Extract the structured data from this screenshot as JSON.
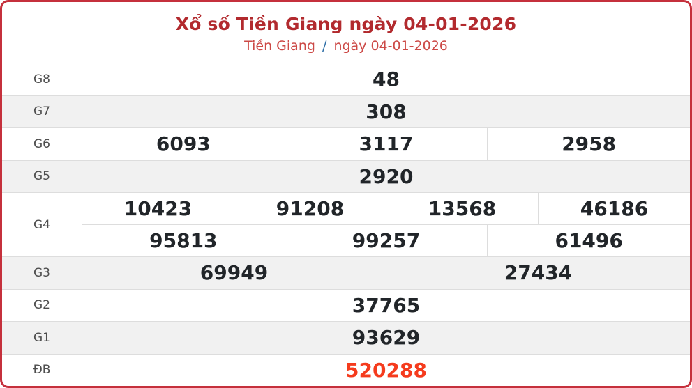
{
  "header": {
    "title": "Xổ số Tiền Giang ngày 04-01-2026",
    "breadcrumb": {
      "province": "Tiền Giang",
      "separator": "/",
      "date": "ngày 04-01-2026"
    }
  },
  "table": {
    "rows": [
      {
        "label": "G8",
        "lines": [
          [
            "48"
          ]
        ]
      },
      {
        "label": "G7",
        "lines": [
          [
            "308"
          ]
        ]
      },
      {
        "label": "G6",
        "lines": [
          [
            "6093",
            "3117",
            "2958"
          ]
        ]
      },
      {
        "label": "G5",
        "lines": [
          [
            "2920"
          ]
        ]
      },
      {
        "label": "G4",
        "lines": [
          [
            "10423",
            "91208",
            "13568",
            "46186"
          ],
          [
            "95813",
            "99257",
            "61496"
          ]
        ]
      },
      {
        "label": "G3",
        "lines": [
          [
            "69949",
            "27434"
          ]
        ]
      },
      {
        "label": "G2",
        "lines": [
          [
            "37765"
          ]
        ]
      },
      {
        "label": "G1",
        "lines": [
          [
            "93629"
          ]
        ]
      },
      {
        "label": "ĐB",
        "lines": [
          [
            "520288"
          ]
        ],
        "special": true
      }
    ]
  },
  "colors": {
    "panel_border": "#c5303c",
    "title": "#b22a2e",
    "subtitle": "#cc4946",
    "separator_blue": "#2f6fa7",
    "number": "#212529",
    "label": "#4d4d4d",
    "row_shade": "#f1f1f1",
    "cell_border": "#dddddd",
    "special_number": "#f53b1d"
  }
}
